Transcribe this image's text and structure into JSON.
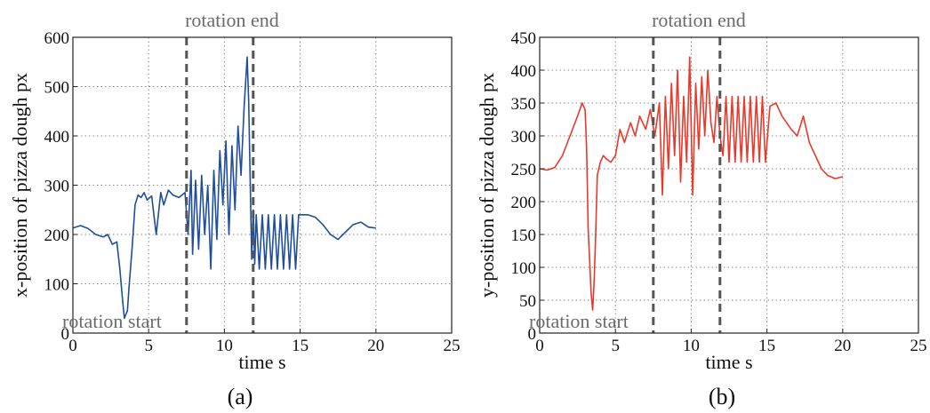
{
  "chart_data": [
    {
      "type": "line",
      "caption": "(a)",
      "xlabel": "time s",
      "ylabel": "x-position of pizza dough  px",
      "xlim": [
        0,
        25
      ],
      "ylim": [
        0,
        600
      ],
      "xticks": [
        0,
        5,
        10,
        15,
        20,
        25
      ],
      "yticks": [
        0,
        100,
        200,
        300,
        400,
        500,
        600
      ],
      "grid": true,
      "color": "#1f4e9c",
      "annotations": [
        {
          "text": "rotation start",
          "x": 0,
          "y": 0
        },
        {
          "text": "rotation end",
          "x": 10.5,
          "y": 600
        }
      ],
      "vlines": [
        7.5,
        11.9
      ],
      "series": [
        {
          "x": [
            0,
            0.5,
            1.0,
            1.5,
            2.0,
            2.3,
            2.6,
            2.9,
            3.1,
            3.3,
            3.4,
            3.5,
            3.6,
            3.7,
            3.9,
            4.1,
            4.3,
            4.5,
            4.7,
            4.9,
            5.2,
            5.5,
            5.8,
            6.0,
            6.3,
            6.6,
            7.0,
            7.4,
            7.6,
            7.8,
            7.9,
            8.1,
            8.3,
            8.5,
            8.7,
            8.9,
            9.1,
            9.3,
            9.5,
            9.7,
            9.9,
            10.1,
            10.3,
            10.5,
            10.7,
            10.9,
            11.1,
            11.3,
            11.5,
            11.6,
            11.8,
            11.9,
            12.0,
            12.1,
            12.3,
            12.5,
            12.7,
            12.9,
            13.1,
            13.3,
            13.5,
            13.7,
            13.9,
            14.1,
            14.3,
            14.5,
            14.7,
            14.9,
            15.5,
            16.0,
            16.5,
            17.0,
            17.5,
            18.0,
            18.5,
            19.0,
            19.5,
            20.0
          ],
          "y": [
            213,
            218,
            212,
            200,
            195,
            200,
            180,
            185,
            130,
            60,
            30,
            38,
            45,
            90,
            170,
            260,
            280,
            275,
            285,
            270,
            278,
            200,
            285,
            260,
            290,
            280,
            275,
            285,
            200,
            330,
            160,
            310,
            170,
            320,
            200,
            300,
            130,
            330,
            190,
            370,
            260,
            390,
            200,
            380,
            250,
            420,
            320,
            460,
            560,
            470,
            150,
            250,
            140,
            240,
            130,
            240,
            130,
            240,
            130,
            240,
            130,
            240,
            130,
            240,
            130,
            240,
            130,
            240,
            240,
            235,
            220,
            200,
            190,
            205,
            220,
            225,
            215,
            213
          ]
        }
      ]
    },
    {
      "type": "line",
      "caption": "(b)",
      "xlabel": "time s",
      "ylabel": "y-position of pizza dough  px",
      "xlim": [
        0,
        25
      ],
      "ylim": [
        0,
        450
      ],
      "xticks": [
        0,
        5,
        10,
        15,
        20,
        25
      ],
      "yticks": [
        0,
        50,
        100,
        150,
        200,
        250,
        300,
        350,
        400,
        450
      ],
      "grid": true,
      "color": "#e8392b",
      "annotations": [
        {
          "text": "rotation start",
          "x": 0,
          "y": 0
        },
        {
          "text": "rotation end",
          "x": 10.5,
          "y": 450
        }
      ],
      "vlines": [
        7.5,
        11.9
      ],
      "series": [
        {
          "x": [
            0,
            0.5,
            1.0,
            1.5,
            2.0,
            2.5,
            2.8,
            3.0,
            3.1,
            3.2,
            3.4,
            3.5,
            3.6,
            3.7,
            3.8,
            4.0,
            4.2,
            4.4,
            4.7,
            5.0,
            5.3,
            5.6,
            6.0,
            6.3,
            6.6,
            7.0,
            7.3,
            7.6,
            7.9,
            8.1,
            8.3,
            8.5,
            8.7,
            8.9,
            9.1,
            9.3,
            9.5,
            9.7,
            9.9,
            10.1,
            10.3,
            10.5,
            10.7,
            10.9,
            11.1,
            11.3,
            11.5,
            11.7,
            11.9,
            12.1,
            12.3,
            12.5,
            12.7,
            12.9,
            13.1,
            13.3,
            13.5,
            13.7,
            13.9,
            14.1,
            14.3,
            14.5,
            14.7,
            14.9,
            15.2,
            15.6,
            16.0,
            16.3,
            16.6,
            17.0,
            17.4,
            17.8,
            18.2,
            18.6,
            19.0,
            19.5,
            20.0
          ],
          "y": [
            250,
            248,
            252,
            270,
            300,
            330,
            350,
            340,
            280,
            160,
            60,
            35,
            80,
            150,
            240,
            260,
            270,
            265,
            260,
            270,
            310,
            290,
            320,
            300,
            330,
            310,
            340,
            300,
            350,
            210,
            360,
            250,
            380,
            270,
            400,
            230,
            360,
            260,
            420,
            210,
            380,
            280,
            390,
            300,
            400,
            320,
            290,
            360,
            300,
            270,
            360,
            260,
            360,
            260,
            360,
            260,
            360,
            260,
            360,
            260,
            360,
            260,
            360,
            260,
            345,
            350,
            330,
            320,
            310,
            300,
            330,
            290,
            270,
            250,
            240,
            235,
            238
          ]
        }
      ]
    }
  ]
}
